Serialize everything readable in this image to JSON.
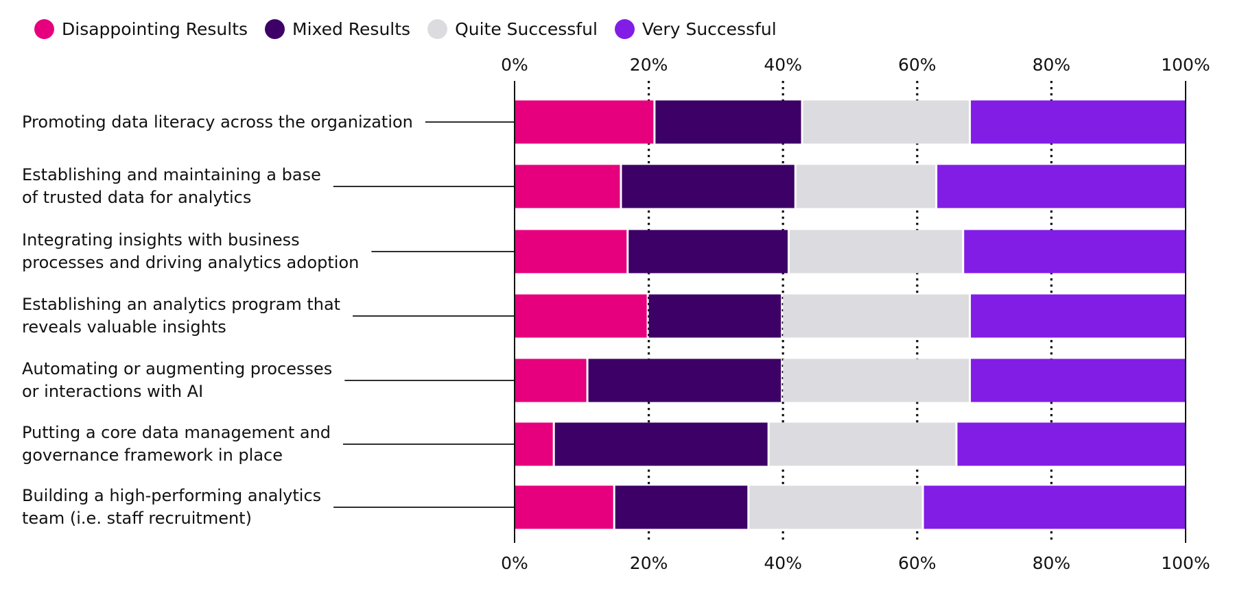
{
  "chart_data": {
    "type": "bar",
    "orientation": "horizontal",
    "stacked": true,
    "title": "",
    "xlabel": "",
    "ylabel": "",
    "xlim": [
      0,
      100
    ],
    "x_ticks": [
      "0%",
      "20%",
      "40%",
      "60%",
      "80%",
      "100%"
    ],
    "grid": "vertical dotted",
    "legend_position": "top-left",
    "categories": [
      "Promoting data literacy across the organization",
      "Establishing and maintaining a base of trusted data for analytics",
      "Integrating insights with business processes and driving analytics adoption",
      "Establishing an analytics program that reveals valuable insights",
      "Automating or augmenting processes or interactions with AI",
      "Putting a core data management and governance framework in place",
      "Building a high-performing analytics team (i.e. staff recruitment)"
    ],
    "category_lines": [
      [
        "Promoting data literacy across the organization"
      ],
      [
        "Establishing and maintaining a base",
        "of trusted data for analytics"
      ],
      [
        "Integrating insights with business",
        "processes and driving analytics adoption"
      ],
      [
        "Establishing an analytics program that",
        "reveals valuable insights"
      ],
      [
        "Automating or augmenting processes",
        "or interactions with AI"
      ],
      [
        "Putting a core data management and",
        "governance framework in place"
      ],
      [
        "Building a high-performing analytics",
        "team (i.e. staff recruitment)"
      ]
    ],
    "series": [
      {
        "name": "Disappointing Results",
        "color": "#E6007E",
        "values": [
          21,
          16,
          17,
          20,
          11,
          6,
          15
        ]
      },
      {
        "name": "Mixed Results",
        "color": "#3D0066",
        "values": [
          22,
          26,
          24,
          20,
          29,
          32,
          20
        ]
      },
      {
        "name": "Quite Successful",
        "color": "#DCDCE0",
        "values": [
          25,
          21,
          26,
          28,
          28,
          28,
          26
        ]
      },
      {
        "name": "Very Successful",
        "color": "#821DE5",
        "values": [
          32,
          37,
          33,
          32,
          32,
          34,
          39
        ]
      }
    ]
  }
}
